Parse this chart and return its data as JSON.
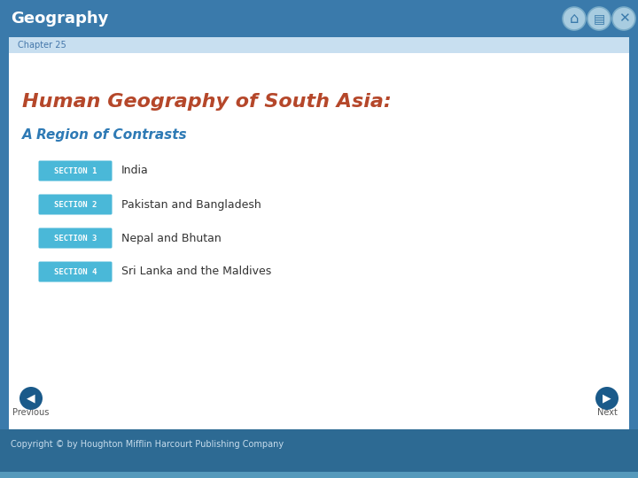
{
  "title": "Geography",
  "chapter_label": "Chapter 25",
  "main_title": "Human Geography of South Asia:",
  "subtitle": "A Region of Contrasts",
  "sections": [
    {
      "label": "SECTION 1",
      "text": "India"
    },
    {
      "label": "SECTION 2",
      "text": "Pakistan and Bangladesh"
    },
    {
      "label": "SECTION 3",
      "text": "Nepal and Bhutan"
    },
    {
      "label": "SECTION 4",
      "text": "Sri Lanka and the Maldives"
    }
  ],
  "bg_color": "#3a7aab",
  "content_bg": "#ffffff",
  "chapter_bar_bg": "#c8dff0",
  "section_btn_color": "#4ab8d8",
  "section_btn_text_color": "#ffffff",
  "main_title_color": "#b5472a",
  "subtitle_color": "#2e7ab5",
  "chapter_text_color": "#4477aa",
  "title_text_color": "#ffffff",
  "footer_bg": "#2d6a93",
  "footer_strip_color": "#5599bb",
  "footer_text_color": "#c8dded",
  "copyright_text": "Copyright © by Houghton Mifflin Harcourt Publishing Company",
  "nav_prev_text": "Previous",
  "nav_next_text": "Next",
  "nav_circle_color": "#1a5a8a",
  "icon_circle_color": "#a8cce0",
  "icon_border_color": "#7aacc8"
}
